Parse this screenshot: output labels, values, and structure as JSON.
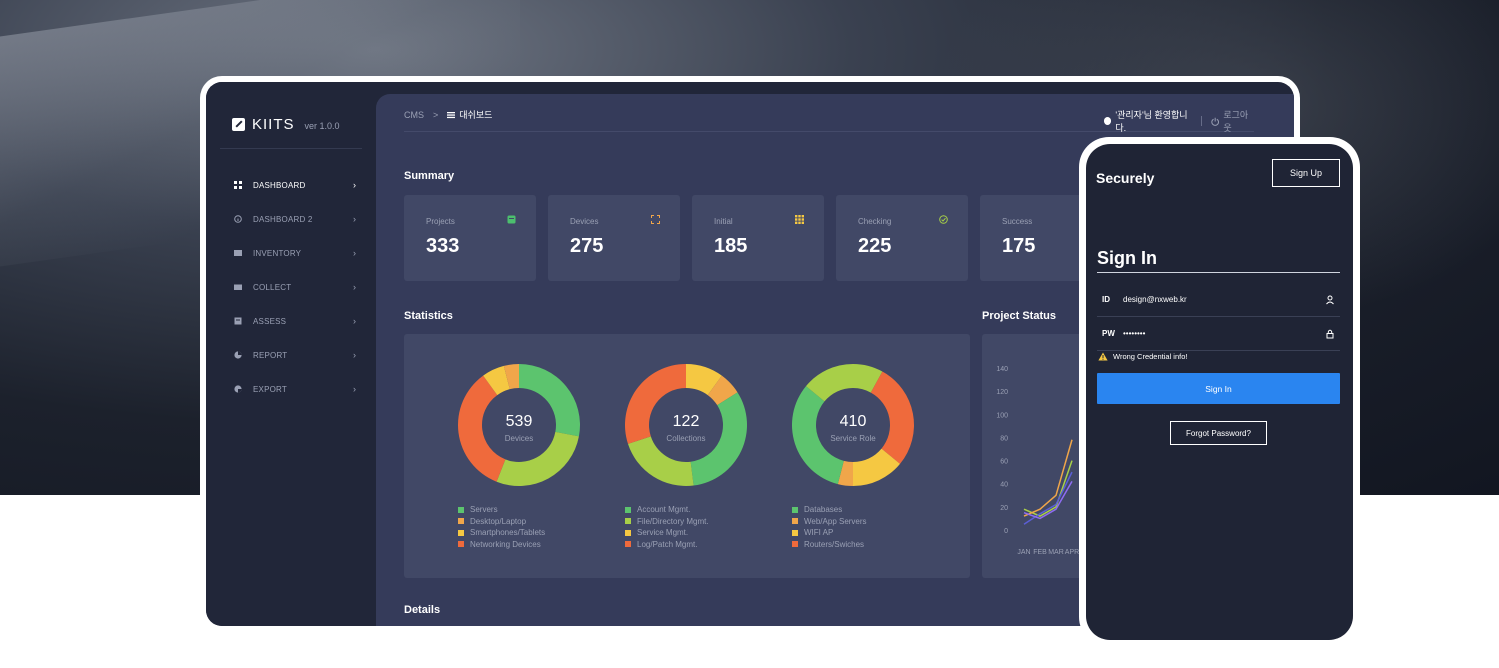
{
  "sidebar": {
    "brand": "KIITS",
    "version": "ver 1.0.0",
    "items": [
      {
        "label": "DASHBOARD",
        "icon": "grid-icon",
        "active": true
      },
      {
        "label": "DASHBOARD 2",
        "icon": "info-icon",
        "active": false
      },
      {
        "label": "INVENTORY",
        "icon": "box-icon",
        "active": false
      },
      {
        "label": "COLLECT",
        "icon": "folder-icon",
        "active": false
      },
      {
        "label": "ASSESS",
        "icon": "doc-icon",
        "active": false
      },
      {
        "label": "REPORT",
        "icon": "pie-icon",
        "active": false
      },
      {
        "label": "EXPORT",
        "icon": "export-icon",
        "active": false
      }
    ]
  },
  "header": {
    "crumb_root": "CMS",
    "crumb_sep": ">",
    "crumb_current": "대쉬보드",
    "welcome": "'관리자'님 환영합니다.",
    "logout": "로그아웃"
  },
  "summary": {
    "title": "Summary",
    "cards": [
      {
        "label": "Projects",
        "value": "333",
        "color": "#4cbf6e"
      },
      {
        "label": "Devices",
        "value": "275",
        "color": "#f0a64a"
      },
      {
        "label": "Initial",
        "value": "185",
        "color": "#f5c842"
      },
      {
        "label": "Checking",
        "value": "225",
        "color": "#a6cf48"
      },
      {
        "label": "Success",
        "value": "175",
        "color": "#8e6cf2"
      }
    ]
  },
  "statistics": {
    "title": "Statistics",
    "donuts": [
      {
        "value": "539",
        "label": "Devices",
        "segments": [
          {
            "v": 28,
            "c": "#5cc46e"
          },
          {
            "v": 28,
            "c": "#a8cf48"
          },
          {
            "v": 34,
            "c": "#ef6a3c"
          },
          {
            "v": 6,
            "c": "#f5c842"
          },
          {
            "v": 4,
            "c": "#f0a64a"
          }
        ],
        "legend": [
          {
            "t": "Servers",
            "c": "#5cc46e"
          },
          {
            "t": "Desktop/Laptop",
            "c": "#f0a64a"
          },
          {
            "t": "Smartphones/Tablets",
            "c": "#f5c842"
          },
          {
            "t": "Networking Devices",
            "c": "#ef6a3c"
          }
        ]
      },
      {
        "value": "122",
        "label": "Collections",
        "segments": [
          {
            "v": 10,
            "c": "#f5c842"
          },
          {
            "v": 6,
            "c": "#f0a64a"
          },
          {
            "v": 32,
            "c": "#5cc46e"
          },
          {
            "v": 22,
            "c": "#a8cf48"
          },
          {
            "v": 30,
            "c": "#ef6a3c"
          }
        ],
        "legend": [
          {
            "t": "Account Mgmt.",
            "c": "#5cc46e"
          },
          {
            "t": "File/Directory Mgmt.",
            "c": "#a8cf48"
          },
          {
            "t": "Service Mgmt.",
            "c": "#f5c842"
          },
          {
            "t": "Log/Patch Mgmt.",
            "c": "#ef6a3c"
          }
        ]
      },
      {
        "value": "410",
        "label": "Service Role",
        "segments": [
          {
            "v": 8,
            "c": "#a8cf48"
          },
          {
            "v": 28,
            "c": "#ef6a3c"
          },
          {
            "v": 14,
            "c": "#f5c842"
          },
          {
            "v": 4,
            "c": "#f0a64a"
          },
          {
            "v": 32,
            "c": "#5cc46e"
          },
          {
            "v": 14,
            "c": "#a8cf48"
          }
        ],
        "legend": [
          {
            "t": "Databases",
            "c": "#5cc46e"
          },
          {
            "t": "Web/App Servers",
            "c": "#f0a64a"
          },
          {
            "t": "WIFI AP",
            "c": "#f5c842"
          },
          {
            "t": "Routers/Swiches",
            "c": "#ef6a3c"
          }
        ]
      }
    ]
  },
  "project_status": {
    "title": "Project Status",
    "y_ticks": [
      "140",
      "120",
      "100",
      "80",
      "60",
      "40",
      "20",
      "0"
    ],
    "x_ticks": [
      "JAN",
      "FEB",
      "MAR",
      "APR"
    ],
    "series": [
      {
        "values": [
          18,
          12,
          20,
          60
        ],
        "color": "#a8cf48"
      },
      {
        "values": [
          12,
          18,
          30,
          78
        ],
        "color": "#f0a64a"
      },
      {
        "values": [
          5,
          14,
          22,
          50
        ],
        "color": "#5b5fd6"
      },
      {
        "values": [
          15,
          10,
          18,
          42
        ],
        "color": "#8e6cf2"
      }
    ]
  },
  "details_title": "Details",
  "phone": {
    "brand": "Securely",
    "signup": "Sign Up",
    "title": "Sign In",
    "id_label": "ID",
    "id_value": "design@nxweb.kr",
    "pw_label": "PW",
    "pw_value": "••••••••",
    "warning": "Wrong Credential info!",
    "signin": "Sign In",
    "forgot": "Forgot Password?"
  }
}
